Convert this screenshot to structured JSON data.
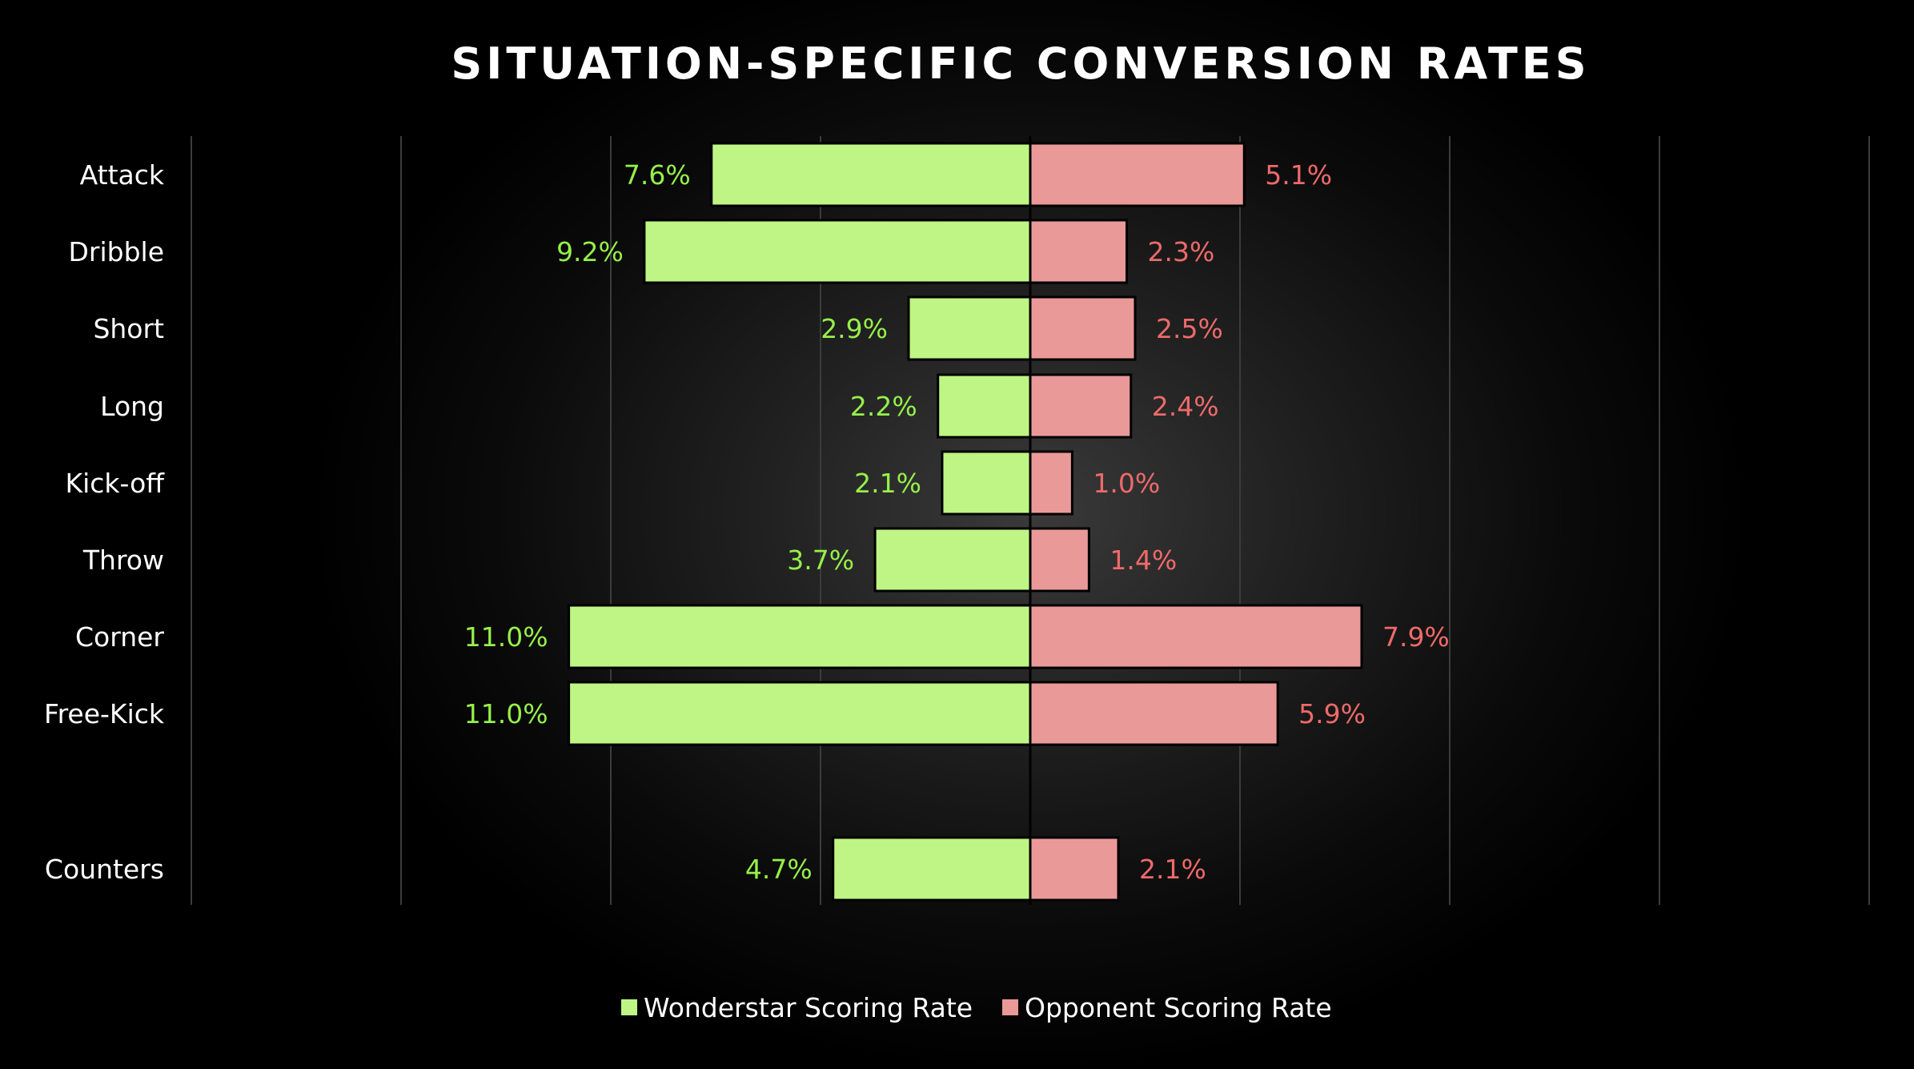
{
  "chart_data": {
    "type": "bar",
    "orientation": "horizontal-diverging",
    "title": "SITUATION-SPECIFIC CONVERSION RATES",
    "categories": [
      "Attack",
      "Dribble",
      "Short",
      "Long",
      "Kick-off",
      "Throw",
      "Corner",
      "Free-Kick",
      "Counters"
    ],
    "series": [
      {
        "name": "Wonderstar Scoring Rate",
        "color": "#bef584",
        "label_color": "#96f04a",
        "values": [
          7.6,
          9.2,
          2.9,
          2.2,
          2.1,
          3.7,
          11.0,
          11.0,
          4.7
        ],
        "labels": [
          "7.6%",
          "9.2%",
          "2.9%",
          "2.2%",
          "2.1%",
          "3.7%",
          "11.0%",
          "11.0%",
          "4.7%"
        ]
      },
      {
        "name": "Opponent Scoring Rate",
        "color": "#ea9999",
        "label_color": "#ee6a6a",
        "values": [
          5.1,
          2.3,
          2.5,
          2.4,
          1.0,
          1.4,
          7.9,
          5.9,
          2.1
        ],
        "labels": [
          "5.1%",
          "2.3%",
          "2.5%",
          "2.4%",
          "1.0%",
          "1.4%",
          "7.9%",
          "5.9%",
          "2.1%"
        ]
      }
    ],
    "xlim": [
      -20,
      20
    ],
    "grid": true,
    "legend": "bottom"
  }
}
